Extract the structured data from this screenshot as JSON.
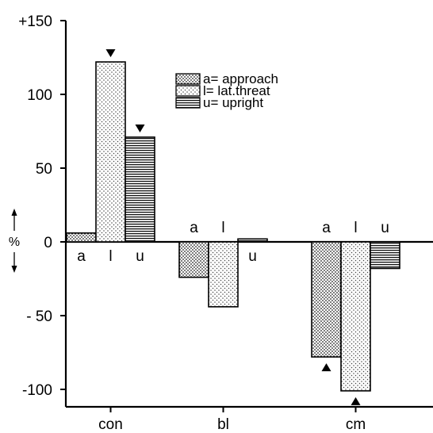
{
  "chart_data": {
    "type": "bar",
    "categories": [
      "con",
      "bl",
      "cm"
    ],
    "ylabel": "%",
    "ylim": [
      -110,
      150
    ],
    "yticks": [
      {
        "value": 150,
        "label": "+150"
      },
      {
        "value": 100,
        "label": "100"
      },
      {
        "value": 50,
        "label": "50"
      },
      {
        "value": 0,
        "label": "0"
      },
      {
        "value": -50,
        "label": "- 50"
      },
      {
        "value": -100,
        "label": "-100"
      }
    ],
    "series": [
      {
        "key": "a",
        "name": "a= approach",
        "pattern": "dots-fine",
        "values": [
          6,
          -24,
          -78
        ]
      },
      {
        "key": "l",
        "name": "l= lat.threat",
        "pattern": "dots-light",
        "values": [
          122,
          -44,
          -101
        ]
      },
      {
        "key": "u",
        "name": "u= upright",
        "pattern": "horizontal-lines",
        "values": [
          71,
          2,
          -18
        ]
      }
    ],
    "bar_letters": [
      [
        "a",
        "l",
        "u"
      ],
      [
        "a",
        "l",
        "u"
      ],
      [
        "a",
        "l",
        "u"
      ]
    ],
    "markers": [
      {
        "category": 0,
        "series": 1,
        "direction": "down"
      },
      {
        "category": 0,
        "series": 2,
        "direction": "down"
      },
      {
        "category": 2,
        "series": 0,
        "direction": "up"
      },
      {
        "category": 2,
        "series": 1,
        "direction": "up"
      }
    ],
    "legend_position": "top-right",
    "grid": false
  }
}
